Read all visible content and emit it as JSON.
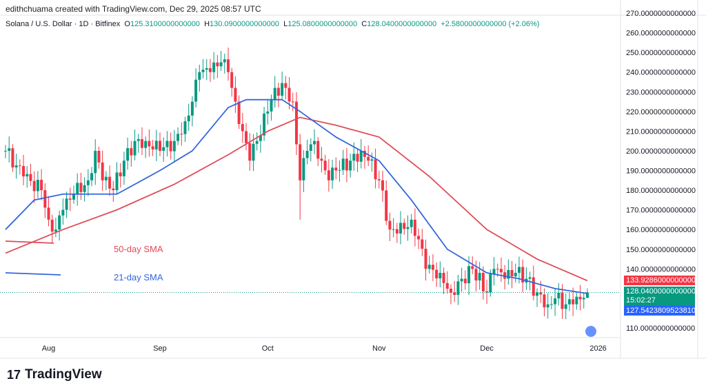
{
  "credit": "edithchuama created with TradingView.com, Dec 29, 2025 08:57 UTC",
  "legend": {
    "symbol": "Solana / U.S. Dollar · 1D · Bitfinex",
    "o_label": "O",
    "o": "125.3100000000000",
    "h_label": "H",
    "h": "130.0900000000000",
    "l_label": "L",
    "l": "125.0800000000000",
    "c_label": "C",
    "c": "128.0400000000000",
    "change": "+2.5800000000000 (+2.06%)"
  },
  "tags": {
    "sma50": "133.9286000000000",
    "price": "128.0400000000000",
    "countdown": "15:02:27",
    "sma21": "127.5423809523810"
  },
  "annotations": {
    "sma50": "50-day SMA",
    "sma21": "21-day SMA"
  },
  "logo": "TradingView",
  "colors": {
    "up": "#089981",
    "down": "#f23645",
    "sma50": "#e04b55",
    "sma21": "#3366dd"
  },
  "chart_data": {
    "type": "candlestick",
    "ylim": [
      105,
      272
    ],
    "y_ticks": [
      110,
      120,
      130,
      140,
      150,
      160,
      170,
      180,
      190,
      200,
      210,
      220,
      230,
      240,
      250,
      260,
      270
    ],
    "y_tick_labels": [
      "110.0000000000000",
      "",
      "",
      "140.0000000000000",
      "150.0000000000000",
      "160.0000000000000",
      "170.0000000000000",
      "180.0000000000000",
      "190.0000000000000",
      "200.0000000000000",
      "210.0000000000000",
      "220.0000000000000",
      "230.0000000000000",
      "240.0000000000000",
      "250.0000000000000",
      "260.0000000000000",
      "270.0000000000000"
    ],
    "x_range": [
      "2025-07-20",
      "2026-01-03"
    ],
    "x_ticks": [
      {
        "date": "2025-08-01",
        "label": "Aug"
      },
      {
        "date": "2025-09-01",
        "label": "Sep"
      },
      {
        "date": "2025-10-01",
        "label": "Oct"
      },
      {
        "date": "2025-11-01",
        "label": "Nov"
      },
      {
        "date": "2025-12-01",
        "label": "Dec"
      },
      {
        "date": "2026-01-01",
        "label": "2026"
      }
    ],
    "close_keypoints": [
      [
        "2025-07-20",
        200
      ],
      [
        "2025-07-25",
        187
      ],
      [
        "2025-07-30",
        180
      ],
      [
        "2025-08-01",
        165
      ],
      [
        "2025-08-03",
        160
      ],
      [
        "2025-08-05",
        170
      ],
      [
        "2025-08-08",
        178
      ],
      [
        "2025-08-12",
        185
      ],
      [
        "2025-08-14",
        200
      ],
      [
        "2025-08-16",
        185
      ],
      [
        "2025-08-19",
        180
      ],
      [
        "2025-08-22",
        195
      ],
      [
        "2025-08-25",
        205
      ],
      [
        "2025-08-28",
        205
      ],
      [
        "2025-09-01",
        200
      ],
      [
        "2025-09-05",
        205
      ],
      [
        "2025-09-08",
        215
      ],
      [
        "2025-09-10",
        225
      ],
      [
        "2025-09-12",
        240
      ],
      [
        "2025-09-15",
        240
      ],
      [
        "2025-09-18",
        245
      ],
      [
        "2025-09-20",
        240
      ],
      [
        "2025-09-22",
        225
      ],
      [
        "2025-09-24",
        210
      ],
      [
        "2025-09-26",
        195
      ],
      [
        "2025-09-28",
        205
      ],
      [
        "2025-10-01",
        220
      ],
      [
        "2025-10-03",
        232
      ],
      [
        "2025-10-06",
        232
      ],
      [
        "2025-10-08",
        225
      ],
      [
        "2025-10-10",
        185
      ],
      [
        "2025-10-12",
        200
      ],
      [
        "2025-10-14",
        205
      ],
      [
        "2025-10-16",
        195
      ],
      [
        "2025-10-18",
        185
      ],
      [
        "2025-10-20",
        190
      ],
      [
        "2025-10-24",
        195
      ],
      [
        "2025-10-27",
        200
      ],
      [
        "2025-10-29",
        195
      ],
      [
        "2025-11-01",
        185
      ],
      [
        "2025-11-04",
        160
      ],
      [
        "2025-11-06",
        158
      ],
      [
        "2025-11-10",
        165
      ],
      [
        "2025-11-12",
        155
      ],
      [
        "2025-11-14",
        140
      ],
      [
        "2025-11-18",
        138
      ],
      [
        "2025-11-21",
        128
      ],
      [
        "2025-11-24",
        135
      ],
      [
        "2025-11-27",
        140
      ],
      [
        "2025-12-01",
        128
      ],
      [
        "2025-12-03",
        140
      ],
      [
        "2025-12-06",
        135
      ],
      [
        "2025-12-09",
        138
      ],
      [
        "2025-12-12",
        135
      ],
      [
        "2025-12-15",
        128
      ],
      [
        "2025-12-18",
        122
      ],
      [
        "2025-12-20",
        125
      ],
      [
        "2025-12-23",
        122
      ],
      [
        "2025-12-25",
        122
      ],
      [
        "2025-12-28",
        125.31
      ],
      [
        "2025-12-29",
        128.04
      ]
    ],
    "last_candle": {
      "date": "2025-12-29",
      "open": 125.31,
      "high": 130.09,
      "low": 125.08,
      "close": 128.04
    },
    "series": [
      {
        "name": "50-day SMA",
        "points": [
          [
            "2025-07-20",
            148
          ],
          [
            "2025-08-05",
            160
          ],
          [
            "2025-08-20",
            170
          ],
          [
            "2025-09-05",
            183
          ],
          [
            "2025-09-20",
            198
          ],
          [
            "2025-10-01",
            210
          ],
          [
            "2025-10-10",
            217
          ],
          [
            "2025-10-20",
            213
          ],
          [
            "2025-11-01",
            207
          ],
          [
            "2025-11-15",
            187
          ],
          [
            "2025-12-01",
            160
          ],
          [
            "2025-12-15",
            145
          ],
          [
            "2025-12-29",
            134
          ]
        ]
      },
      {
        "name": "21-day SMA",
        "points": [
          [
            "2025-07-20",
            160
          ],
          [
            "2025-07-28",
            175
          ],
          [
            "2025-08-05",
            178
          ],
          [
            "2025-08-20",
            178
          ],
          [
            "2025-09-01",
            190
          ],
          [
            "2025-09-10",
            200
          ],
          [
            "2025-09-20",
            222
          ],
          [
            "2025-09-25",
            226
          ],
          [
            "2025-10-05",
            226
          ],
          [
            "2025-10-10",
            220
          ],
          [
            "2025-10-20",
            207
          ],
          [
            "2025-11-01",
            195
          ],
          [
            "2025-11-10",
            175
          ],
          [
            "2025-11-20",
            150
          ],
          [
            "2025-12-01",
            138
          ],
          [
            "2025-12-10",
            135
          ],
          [
            "2025-12-20",
            130
          ],
          [
            "2025-12-29",
            127.5
          ]
        ]
      }
    ]
  }
}
